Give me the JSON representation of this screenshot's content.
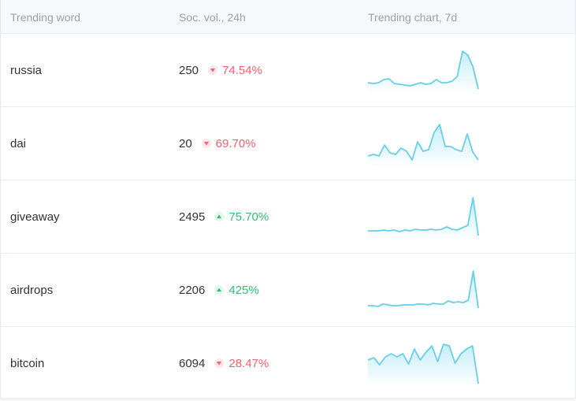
{
  "header": {
    "columns": [
      "Trending word",
      "Soc. vol., 24h",
      "Trending chart, 7d"
    ]
  },
  "table": {
    "rows": [
      {
        "word": "russia",
        "volume": 250,
        "change": "74.54%",
        "direction": "down",
        "sparkline": [
          10,
          9,
          10,
          14,
          15,
          9,
          8,
          7,
          6,
          8,
          10,
          8,
          9,
          14,
          10,
          10,
          12,
          18,
          50,
          45,
          30,
          2
        ]
      },
      {
        "word": "dai",
        "volume": 20,
        "change": "69.70%",
        "direction": "down",
        "sparkline": [
          10,
          12,
          10,
          24,
          14,
          12,
          20,
          16,
          5,
          28,
          16,
          18,
          40,
          50,
          22,
          22,
          18,
          16,
          38,
          15,
          5
        ]
      },
      {
        "word": "giveaway",
        "volume": 2495,
        "change": "75.70%",
        "direction": "up",
        "sparkline": [
          8,
          8,
          8,
          9,
          8,
          9,
          7,
          9,
          8,
          10,
          9,
          9,
          10,
          9,
          10,
          13,
          10,
          9,
          12,
          15,
          50,
          2
        ]
      },
      {
        "word": "airdrops",
        "volume": 2206,
        "change": "425%",
        "direction": "up",
        "sparkline": [
          6,
          6,
          5,
          8,
          7,
          6,
          6,
          7,
          7,
          7,
          8,
          8,
          7,
          9,
          8,
          8,
          12,
          10,
          11,
          10,
          13,
          50,
          3
        ]
      },
      {
        "word": "bitcoin",
        "volume": 6094,
        "change": "28.47%",
        "direction": "down",
        "sparkline": [
          30,
          33,
          24,
          34,
          38,
          34,
          38,
          25,
          44,
          30,
          40,
          48,
          28,
          50,
          48,
          26,
          38,
          44,
          48,
          0
        ]
      }
    ]
  }
}
